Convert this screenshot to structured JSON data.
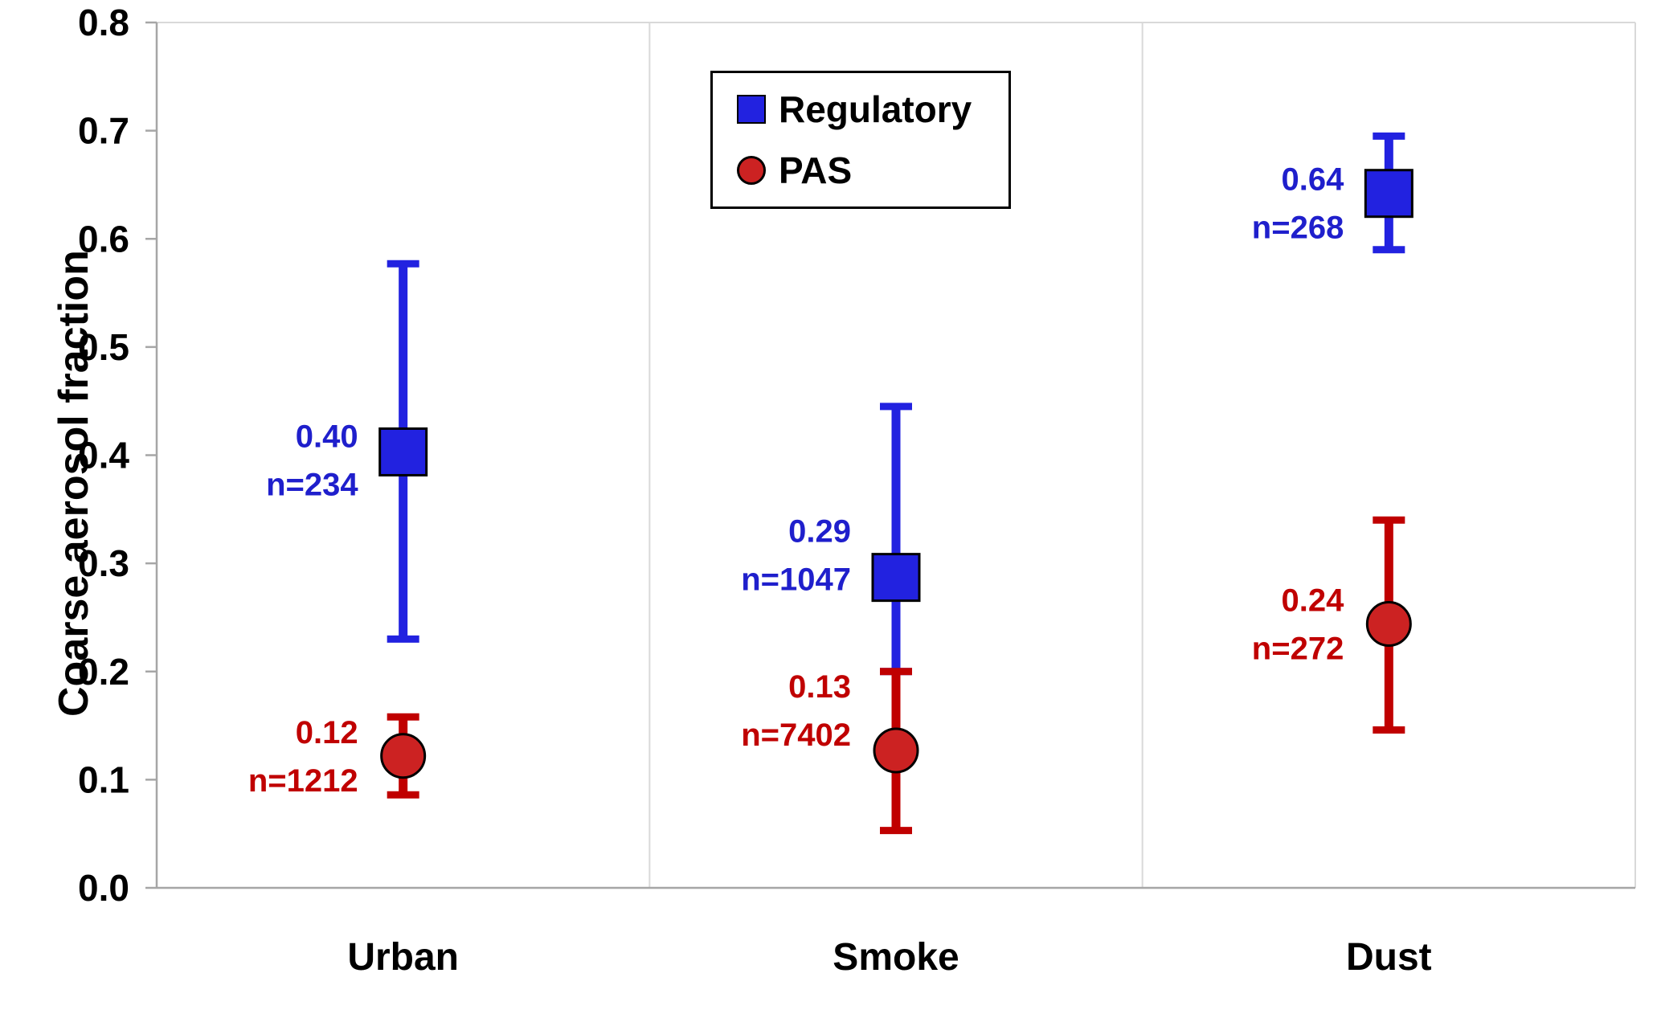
{
  "chart_data": {
    "type": "scatter",
    "title": "",
    "xlabel": "",
    "ylabel": "Coarse aerosol fraction",
    "ylim": [
      0.0,
      0.8
    ],
    "yticks": [
      0.0,
      0.1,
      0.2,
      0.3,
      0.4,
      0.5,
      0.6,
      0.7,
      0.8
    ],
    "ytick_labels": [
      "0.0",
      "0.1",
      "0.2",
      "0.3",
      "0.4",
      "0.5",
      "0.6",
      "0.7",
      "0.8"
    ],
    "categories": [
      "Urban",
      "Smoke",
      "Dust"
    ],
    "grid": "vertical-category-dividers",
    "legend_position": "top-center",
    "grid_color": "#D9D9D9",
    "axis_color": "#A6A6A6",
    "series": [
      {
        "name": "Regulatory",
        "marker": "square",
        "color": "#2222E0",
        "marker_fill": "#2222E0",
        "label_color": "#1F1FCC",
        "points": [
          {
            "category": "Urban",
            "value": 0.403,
            "value_label": "0.40",
            "n": 234,
            "n_label": "n=234",
            "err_low": 0.23,
            "err_high": 0.577,
            "label_dy": 10
          },
          {
            "category": "Smoke",
            "value": 0.287,
            "value_label": "0.29",
            "n": 1047,
            "n_label": "n=1047",
            "err_low": 0.2,
            "err_high": 0.445,
            "label_dy": -28
          },
          {
            "category": "Dust",
            "value": 0.642,
            "value_label": "0.64",
            "n": 268,
            "n_label": "n=268",
            "err_low": 0.59,
            "err_high": 0.695,
            "label_dy": 12
          }
        ]
      },
      {
        "name": "PAS",
        "marker": "circle",
        "color": "#C00000",
        "marker_fill": "#CC2222",
        "label_color": "#C00000",
        "points": [
          {
            "category": "Urban",
            "value": 0.122,
            "value_label": "0.12",
            "n": 1212,
            "n_label": "n=1212",
            "err_low": 0.086,
            "err_high": 0.158,
            "label_dy": 0
          },
          {
            "category": "Smoke",
            "value": 0.127,
            "value_label": "0.13",
            "n": 7402,
            "n_label": "n=7402",
            "err_low": 0.053,
            "err_high": 0.2,
            "label_dy": -50
          },
          {
            "category": "Dust",
            "value": 0.244,
            "value_label": "0.24",
            "n": 272,
            "n_label": "n=272",
            "err_low": 0.146,
            "err_high": 0.34,
            "label_dy": 0
          }
        ]
      }
    ]
  }
}
